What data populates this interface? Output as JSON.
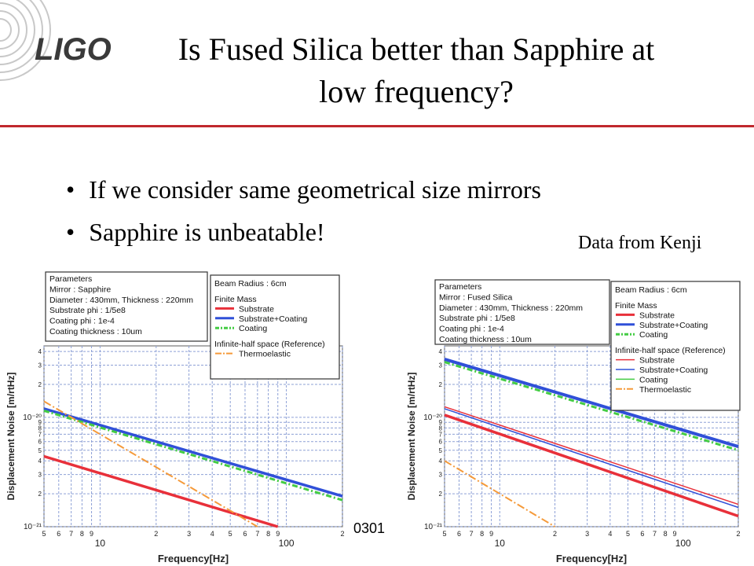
{
  "slide": {
    "logo_text": "LIGO",
    "title_line1": "Is Fused Silica better than Sapphire at",
    "title_line2": "low frequency?",
    "bullets": [
      "If we consider same geometrical size mirrors",
      "Sapphire is unbeatable!"
    ],
    "credit": "Data from Kenji",
    "slide_number_fragment": "0301"
  },
  "colors": {
    "accent_red": "#c0272d",
    "substrate": "#e8303a",
    "substrate_coating": "#3050d8",
    "coating": "#44cc44",
    "thermoelastic": "#f59a3a"
  },
  "chart_data": [
    {
      "type": "line",
      "xlabel": "Frequency[Hz]",
      "ylabel": "Displacement Noise [m/rtHz]",
      "xscale": "log",
      "yscale": "log",
      "xlim": [
        5,
        200
      ],
      "ylim": [
        1e-21,
        4.5e-20
      ],
      "x_ticks": [
        {
          "v": 5,
          "l": "5"
        },
        {
          "v": 6,
          "l": "6"
        },
        {
          "v": 7,
          "l": "7"
        },
        {
          "v": 8,
          "l": "8"
        },
        {
          "v": 9,
          "l": "9"
        },
        {
          "v": 10,
          "l": "10"
        },
        {
          "v": 20,
          "l": "2"
        },
        {
          "v": 30,
          "l": "3"
        },
        {
          "v": 40,
          "l": "4"
        },
        {
          "v": 50,
          "l": "5"
        },
        {
          "v": 60,
          "l": "6"
        },
        {
          "v": 70,
          "l": "7"
        },
        {
          "v": 80,
          "l": "8"
        },
        {
          "v": 90,
          "l": "9"
        },
        {
          "v": 100,
          "l": "100"
        },
        {
          "v": 200,
          "l": "2"
        }
      ],
      "y_ticks": [
        {
          "v": 1e-21,
          "l": "10⁻²¹"
        },
        {
          "v": 2e-21,
          "l": "2"
        },
        {
          "v": 3e-21,
          "l": "3"
        },
        {
          "v": 4e-21,
          "l": "4"
        },
        {
          "v": 5e-21,
          "l": "5"
        },
        {
          "v": 6e-21,
          "l": "6"
        },
        {
          "v": 7e-21,
          "l": "7"
        },
        {
          "v": 8e-21,
          "l": "8"
        },
        {
          "v": 9e-21,
          "l": "9"
        },
        {
          "v": 1e-20,
          "l": "10⁻²⁰"
        },
        {
          "v": 2e-20,
          "l": "2"
        },
        {
          "v": 3e-20,
          "l": "3"
        },
        {
          "v": 4e-20,
          "l": "4"
        }
      ],
      "parameters": [
        "Parameters",
        "Mirror : Sapphire",
        "Diameter : 430mm, Thickness : 220mm",
        "Substrate phi : 1/5e8",
        "Coating phi : 1e-4",
        "Coating thickness : 10um"
      ],
      "legend": {
        "beam_radius": "Beam Radius : 6cm",
        "finite_mass": "Finite Mass",
        "finite_entries": [
          {
            "name": "Substrate",
            "color": "substrate"
          },
          {
            "name": "Substrate+Coating",
            "color": "substrate_coating"
          },
          {
            "name": "Coating",
            "color": "coating"
          }
        ],
        "infinite_heading": "Infinite-half space (Reference)",
        "infinite_entries": [
          {
            "name": "Thermoelastic",
            "color": "thermoelastic"
          }
        ]
      },
      "series": [
        {
          "name": "Substrate",
          "color": "substrate",
          "width": 3.5,
          "dash": "",
          "x": [
            5,
            90
          ],
          "y": [
            4.4e-21,
            1e-21
          ]
        },
        {
          "name": "Substrate+Coating",
          "color": "substrate_coating",
          "width": 3.5,
          "dash": "",
          "x": [
            5,
            200
          ],
          "y": [
            1.2e-20,
            1.9e-21
          ]
        },
        {
          "name": "Coating",
          "color": "coating",
          "width": 3,
          "dash": "7,3,2,3",
          "x": [
            5,
            200
          ],
          "y": [
            1.15e-20,
            1.75e-21
          ]
        },
        {
          "name": "Thermoelastic",
          "color": "thermoelastic",
          "width": 2,
          "dash": "10,3,2,3",
          "x": [
            5,
            70
          ],
          "y": [
            1.4e-20,
            1e-21
          ]
        }
      ]
    },
    {
      "type": "line",
      "xlabel": "Frequency[Hz]",
      "ylabel": "Displacement Noise [m/rtHz]",
      "xscale": "log",
      "yscale": "log",
      "xlim": [
        5,
        200
      ],
      "ylim": [
        1e-21,
        4.5e-20
      ],
      "x_ticks": [
        {
          "v": 5,
          "l": "5"
        },
        {
          "v": 6,
          "l": "6"
        },
        {
          "v": 7,
          "l": "7"
        },
        {
          "v": 8,
          "l": "8"
        },
        {
          "v": 9,
          "l": "9"
        },
        {
          "v": 10,
          "l": "10"
        },
        {
          "v": 20,
          "l": "2"
        },
        {
          "v": 30,
          "l": "3"
        },
        {
          "v": 40,
          "l": "4"
        },
        {
          "v": 50,
          "l": "5"
        },
        {
          "v": 60,
          "l": "6"
        },
        {
          "v": 70,
          "l": "7"
        },
        {
          "v": 80,
          "l": "8"
        },
        {
          "v": 90,
          "l": "9"
        },
        {
          "v": 100,
          "l": "100"
        },
        {
          "v": 200,
          "l": "2"
        }
      ],
      "y_ticks": [
        {
          "v": 1e-21,
          "l": "10⁻²¹"
        },
        {
          "v": 2e-21,
          "l": "2"
        },
        {
          "v": 3e-21,
          "l": "3"
        },
        {
          "v": 4e-21,
          "l": "4"
        },
        {
          "v": 5e-21,
          "l": "5"
        },
        {
          "v": 6e-21,
          "l": "6"
        },
        {
          "v": 7e-21,
          "l": "7"
        },
        {
          "v": 8e-21,
          "l": "8"
        },
        {
          "v": 9e-21,
          "l": "9"
        },
        {
          "v": 1e-20,
          "l": "10⁻²⁰"
        },
        {
          "v": 2e-20,
          "l": "2"
        },
        {
          "v": 3e-20,
          "l": "3"
        },
        {
          "v": 4e-20,
          "l": "4"
        }
      ],
      "parameters": [
        "Parameters",
        "Mirror : Fused Silica",
        "Diameter : 430mm, Thickness : 220mm",
        "Substrate phi : 1/5e8",
        "Coating phi : 1e-4",
        "Coating thickness : 10um"
      ],
      "legend": {
        "beam_radius": "Beam Radius : 6cm",
        "finite_mass": "Finite Mass",
        "finite_entries": [
          {
            "name": "Substrate",
            "color": "substrate"
          },
          {
            "name": "Substrate+Coating",
            "color": "substrate_coating"
          },
          {
            "name": "Coating",
            "color": "coating"
          }
        ],
        "infinite_heading": "Infinite-half space (Reference)",
        "infinite_entries": [
          {
            "name": "Substrate",
            "color": "substrate"
          },
          {
            "name": "Substrate+Coating",
            "color": "substrate_coating"
          },
          {
            "name": "Coating",
            "color": "coating"
          },
          {
            "name": "Thermoelastic",
            "color": "thermoelastic"
          }
        ]
      },
      "series": [
        {
          "name": "Substrate+Coating",
          "color": "substrate_coating",
          "width": 4,
          "dash": "",
          "x": [
            5,
            200
          ],
          "y": [
            3.4e-20,
            5.4e-21
          ]
        },
        {
          "name": "Coating",
          "color": "coating",
          "width": 3,
          "dash": "7,3,2,3",
          "x": [
            5,
            200
          ],
          "y": [
            3.2e-20,
            5e-21
          ]
        },
        {
          "name": "Substrate",
          "color": "substrate",
          "width": 3.5,
          "dash": "",
          "x": [
            5,
            200
          ],
          "y": [
            1.05e-20,
            1.25e-21
          ]
        },
        {
          "name": "Substrate (infinite-half space)",
          "color": "substrate",
          "width": 1.5,
          "dash": "",
          "x": [
            5,
            200
          ],
          "y": [
            1.25e-20,
            1.6e-21
          ]
        },
        {
          "name": "Substrate+Coating (infinite-half space)",
          "color": "substrate_coating",
          "width": 1.5,
          "dash": "",
          "x": [
            5,
            200
          ],
          "y": [
            1.2e-20,
            1.5e-21
          ]
        },
        {
          "name": "Thermoelastic",
          "color": "thermoelastic",
          "width": 2,
          "dash": "10,3,2,3",
          "x": [
            5,
            20
          ],
          "y": [
            4e-21,
            1e-21
          ]
        }
      ]
    }
  ]
}
